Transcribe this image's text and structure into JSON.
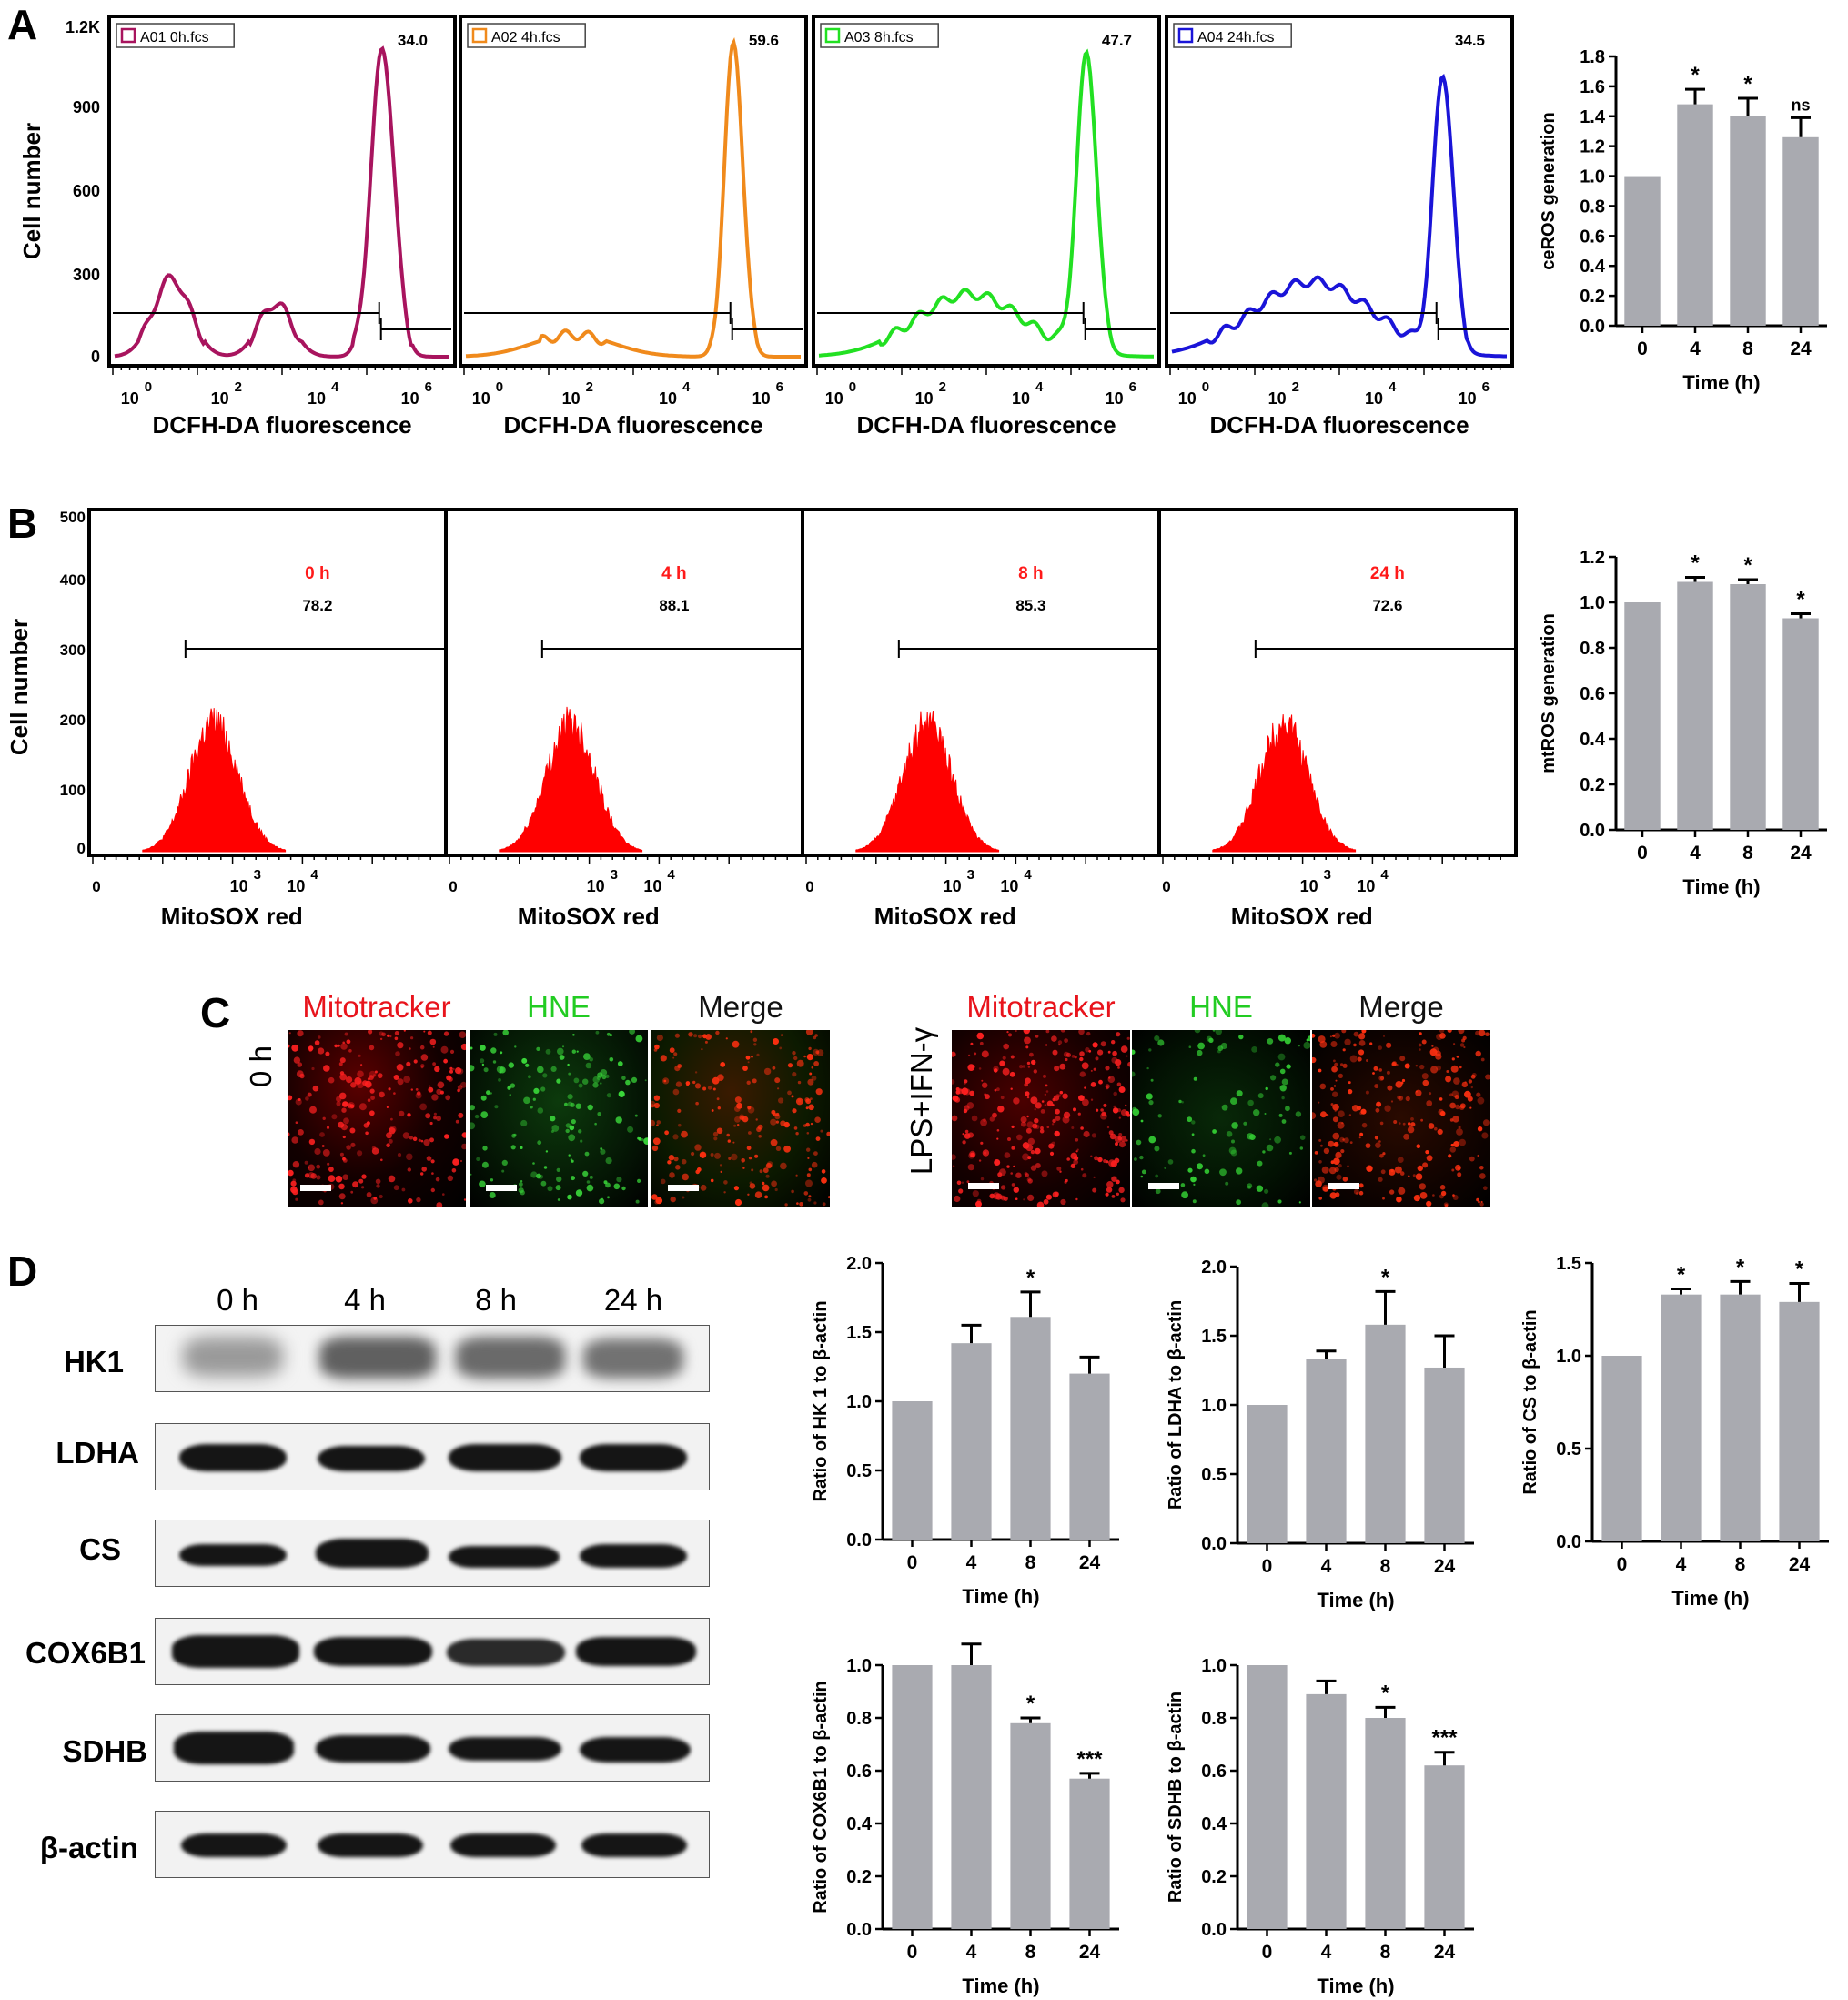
{
  "panel_labels": [
    "A",
    "B",
    "C",
    "D"
  ],
  "panelA": {
    "histograms": [
      {
        "sample": "A01 0h.fcs",
        "gate_value": "34.0",
        "color": "#a8145e"
      },
      {
        "sample": "A02 4h.fcs",
        "gate_value": "59.6",
        "color": "#f08a1c"
      },
      {
        "sample": "A03 8h.fcs",
        "gate_value": "47.7",
        "color": "#22e022"
      },
      {
        "sample": "A04 24h.fcs",
        "gate_value": "34.5",
        "color": "#1a14d8"
      }
    ],
    "y_axis_label": "Cell number",
    "y_ticks": [
      "1.2K",
      "900",
      "600",
      "300",
      "0"
    ],
    "x_tick_exponents": [
      "0",
      "2",
      "4",
      "6"
    ],
    "x_tick_base": "10",
    "x_axis_label": "DCFH-DA fluorescence"
  },
  "panelB": {
    "histograms": [
      {
        "time": "0 h",
        "gate_value": "78.2"
      },
      {
        "time": "4 h",
        "gate_value": "88.1"
      },
      {
        "time": "8 h",
        "gate_value": "85.3"
      },
      {
        "time": "24 h",
        "gate_value": "72.6"
      }
    ],
    "y_axis_label": "Cell number",
    "y_ticks": [
      "500",
      "400",
      "300",
      "200",
      "100",
      "0"
    ],
    "x_ticks": [
      "0",
      "10",
      "10"
    ],
    "x_tick_exponents": [
      "3",
      "4"
    ],
    "x_axis_label": "MitoSOX  red",
    "fill_color": "#ff0000",
    "time_color": "#ff1a1a"
  },
  "panelC": {
    "groups": [
      {
        "row_label": "0 h",
        "channels": [
          "Mitotracker",
          "HNE",
          "Merge"
        ]
      },
      {
        "row_label": "LPS+IFN-γ",
        "channels": [
          "Mitotracker",
          "HNE",
          "Merge"
        ]
      }
    ],
    "channel_colors": {
      "Mitotracker": "#e8141c",
      "HNE": "#22cc22",
      "Merge": "#111111"
    }
  },
  "panelD": {
    "lanes": [
      "0 h",
      "4 h",
      "8 h",
      "24 h"
    ],
    "proteins": [
      "HK1",
      "LDHA",
      "CS",
      "COX6B1",
      "SDHB",
      "β-actin"
    ]
  },
  "chart_data": [
    {
      "type": "bar",
      "id": "ceROS",
      "categories": [
        "0",
        "4",
        "8",
        "24"
      ],
      "values": [
        1.0,
        1.48,
        1.4,
        1.26
      ],
      "errors": [
        0,
        0.1,
        0.12,
        0.13
      ],
      "significance": [
        "",
        "*",
        "*",
        "ns"
      ],
      "xlabel": "Time (h)",
      "ylabel": "ceROS generation",
      "ylim": [
        0,
        1.8
      ],
      "yticks": [
        "0.0",
        "0.2",
        "0.4",
        "0.6",
        "0.8",
        "1.0",
        "1.2",
        "1.4",
        "1.6",
        "1.8"
      ],
      "bar_color": "#a9aab0"
    },
    {
      "type": "bar",
      "id": "mtROS",
      "categories": [
        "0",
        "4",
        "8",
        "24"
      ],
      "values": [
        1.0,
        1.09,
        1.08,
        0.93
      ],
      "errors": [
        0,
        0.02,
        0.02,
        0.02
      ],
      "significance": [
        "",
        "*",
        "*",
        "*"
      ],
      "xlabel": "Time (h)",
      "ylabel": "mtROS generation",
      "ylim": [
        0,
        1.2
      ],
      "yticks": [
        "0.0",
        "0.2",
        "0.4",
        "0.6",
        "0.8",
        "1.0",
        "1.2"
      ],
      "bar_color": "#a9aab0"
    },
    {
      "type": "bar",
      "id": "HK1",
      "categories": [
        "0",
        "4",
        "8",
        "24"
      ],
      "values": [
        1.0,
        1.42,
        1.61,
        1.2
      ],
      "errors": [
        0,
        0.13,
        0.18,
        0.12
      ],
      "significance": [
        "",
        "",
        "*",
        ""
      ],
      "xlabel": "Time (h)",
      "ylabel": "Ratio of HK 1 to β-actin",
      "ylim": [
        0,
        2.0
      ],
      "yticks": [
        "0.0",
        "0.5",
        "1.0",
        "1.5",
        "2.0"
      ],
      "bar_color": "#a9aab0"
    },
    {
      "type": "bar",
      "id": "LDHA",
      "categories": [
        "0",
        "4",
        "8",
        "24"
      ],
      "values": [
        1.0,
        1.33,
        1.58,
        1.27
      ],
      "errors": [
        0,
        0.06,
        0.24,
        0.23
      ],
      "significance": [
        "",
        "",
        "*",
        ""
      ],
      "xlabel": "Time (h)",
      "ylabel": "Ratio of LDHA  to β-actin",
      "ylim": [
        0,
        2.0
      ],
      "yticks": [
        "0.0",
        "0.5",
        "1.0",
        "1.5",
        "2.0"
      ],
      "bar_color": "#a9aab0"
    },
    {
      "type": "bar",
      "id": "CS",
      "categories": [
        "0",
        "4",
        "8",
        "24"
      ],
      "values": [
        1.0,
        1.33,
        1.33,
        1.29
      ],
      "errors": [
        0,
        0.03,
        0.07,
        0.1
      ],
      "significance": [
        "",
        "*",
        "*",
        "*"
      ],
      "xlabel": "Time (h)",
      "ylabel": "Ratio of CS  to β-actin",
      "ylim": [
        0,
        1.5
      ],
      "yticks": [
        "0.0",
        "0.5",
        "1.0",
        "1.5"
      ],
      "bar_color": "#a9aab0"
    },
    {
      "type": "bar",
      "id": "COX6B1",
      "categories": [
        "0",
        "4",
        "8",
        "24"
      ],
      "values": [
        1.0,
        1.0,
        0.78,
        0.57
      ],
      "errors": [
        0,
        0.08,
        0.02,
        0.02
      ],
      "significance": [
        "",
        "",
        "*",
        "***"
      ],
      "xlabel": "Time (h)",
      "ylabel": "Ratio of COX6B1 to β-actin",
      "ylim": [
        0,
        1.0
      ],
      "yticks": [
        "0.0",
        "0.2",
        "0.4",
        "0.6",
        "0.8",
        "1.0"
      ],
      "bar_color": "#a9aab0"
    },
    {
      "type": "bar",
      "id": "SDHB",
      "categories": [
        "0",
        "4",
        "8",
        "24"
      ],
      "values": [
        1.0,
        0.89,
        0.8,
        0.62
      ],
      "errors": [
        0,
        0.05,
        0.04,
        0.05
      ],
      "significance": [
        "",
        "",
        "*",
        "***"
      ],
      "xlabel": "Time (h)",
      "ylabel": "Ratio of SDHB to β-actin",
      "ylim": [
        0,
        1.0
      ],
      "yticks": [
        "0.0",
        "0.2",
        "0.4",
        "0.6",
        "0.8",
        "1.0"
      ],
      "bar_color": "#a9aab0"
    }
  ]
}
